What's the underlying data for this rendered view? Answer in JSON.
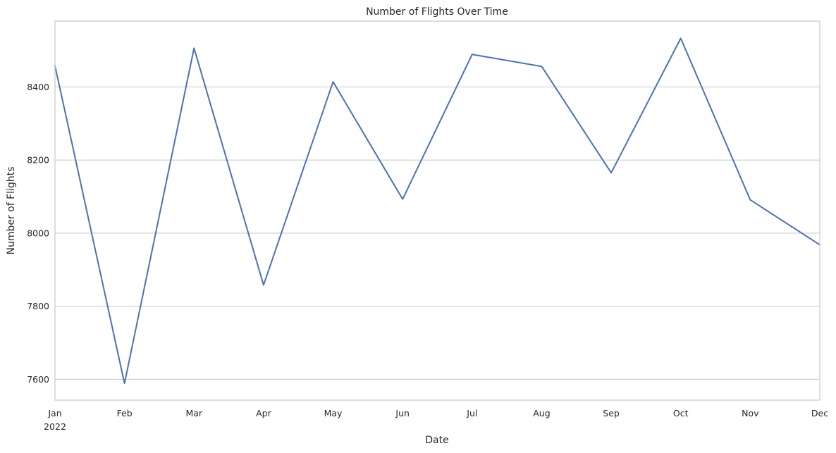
{
  "chart_data": {
    "type": "line",
    "title": "Number of Flights Over Time",
    "xlabel": "Date",
    "ylabel": "Number of Flights",
    "x": [
      "2022-01",
      "2022-02",
      "2022-03",
      "2022-04",
      "2022-05",
      "2022-06",
      "2022-07",
      "2022-08",
      "2022-09",
      "2022-10",
      "2022-11",
      "2022-12"
    ],
    "x_tick_labels": [
      "Jan",
      "Feb",
      "Mar",
      "Apr",
      "May",
      "Jun",
      "Jul",
      "Aug",
      "Sep",
      "Oct",
      "Nov",
      "Dec"
    ],
    "x_year_label": "2022",
    "series": [
      {
        "values": [
          8458,
          7589,
          8506,
          7858,
          8414,
          8093,
          8489,
          8456,
          8165,
          8533,
          8091,
          7968
        ],
        "color": "#4c72b0"
      }
    ],
    "yticks": [
      7600,
      7800,
      8000,
      8200,
      8400
    ],
    "ylim": [
      7543,
      8580
    ],
    "grid": "horizontal",
    "legend": false
  }
}
